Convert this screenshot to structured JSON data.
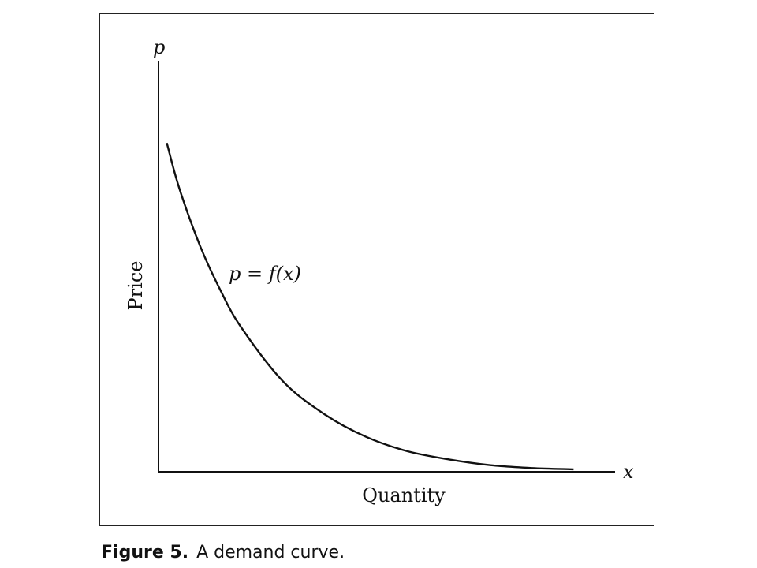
{
  "chart_data": {
    "type": "line",
    "title": "",
    "xlabel": "Quantity",
    "ylabel": "Price",
    "x_axis_symbol": "x",
    "y_axis_symbol": "p",
    "grid": false,
    "series": [
      {
        "annotation": "p = f(x)",
        "x": [
          0.02,
          0.05,
          0.1,
          0.15,
          0.2,
          0.3,
          0.4,
          0.5,
          0.6,
          0.7,
          0.8,
          0.9,
          1.0
        ],
        "y": [
          0.8,
          0.69,
          0.55,
          0.44,
          0.35,
          0.22,
          0.14,
          0.085,
          0.05,
          0.03,
          0.016,
          0.009,
          0.006
        ]
      }
    ],
    "xlim": [
      0,
      1.1
    ],
    "ylim": [
      0,
      1.0
    ]
  },
  "caption": {
    "label": "Figure 5.",
    "text": "A demand curve."
  },
  "colors": {
    "ink": "#111111",
    "frame": "#222222",
    "background": "#ffffff"
  }
}
